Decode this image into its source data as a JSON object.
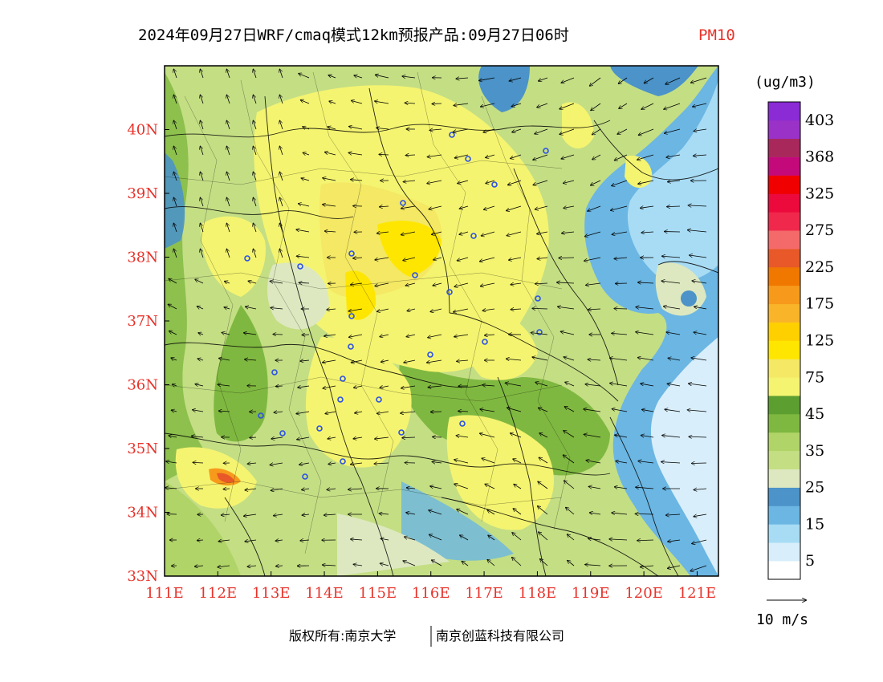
{
  "title": {
    "main": "2024年09月27日WRF/cmaq模式12km预报产品:09月27日06时",
    "variable": "PM10"
  },
  "map": {
    "x_ticks": [
      "111E",
      "112E",
      "113E",
      "114E",
      "115E",
      "116E",
      "117E",
      "118E",
      "119E",
      "120E",
      "121E"
    ],
    "y_ticks": [
      "33N",
      "34N",
      "35N",
      "36N",
      "37N",
      "38N",
      "39N",
      "40N"
    ],
    "lon_range": [
      111,
      121.4
    ],
    "lat_range": [
      33,
      41
    ]
  },
  "colorbar": {
    "unit": "(ug/m3)",
    "labels": [
      "5",
      "15",
      "25",
      "35",
      "45",
      "75",
      "125",
      "175",
      "225",
      "275",
      "325",
      "368",
      "403"
    ],
    "colors": [
      "#ffffff",
      "#d8eefa",
      "#a8dcf4",
      "#6bb6e3",
      "#4b93c8",
      "#dde8c0",
      "#c4de84",
      "#b0d468",
      "#7fb840",
      "#5c9e30",
      "#f4f470",
      "#f4e864",
      "#ffe600",
      "#ffd000",
      "#f9b42a",
      "#f79a1c",
      "#f07800",
      "#e85828",
      "#f46a6a",
      "#f0284c",
      "#ec0a3c",
      "#f00000",
      "#c40a7a",
      "#a8285c",
      "#9a32c8",
      "#8a2bd6"
    ]
  },
  "wind_legend": {
    "label": "10 m/s"
  },
  "footer": {
    "left": "版权所有:南京大学",
    "right": "南京创蓝科技有限公司"
  }
}
